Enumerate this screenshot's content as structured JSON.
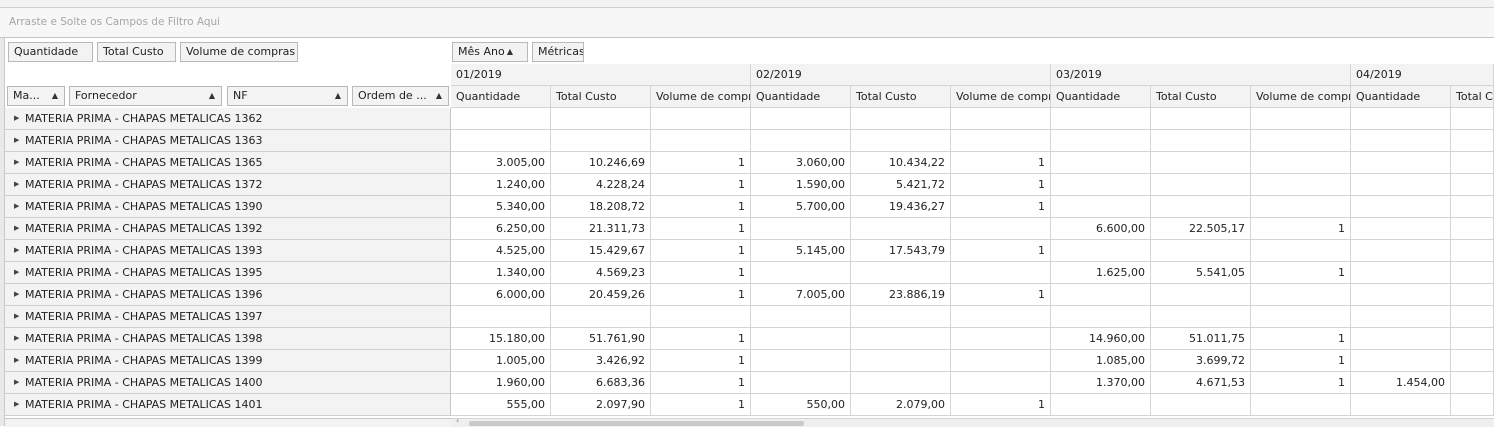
{
  "filter_area": {
    "placeholder": "Arraste e Solte os Campos de Filtro Aqui"
  },
  "data_fields": [
    {
      "label": "Quantidade"
    },
    {
      "label": "Total Custo"
    },
    {
      "label": "Volume de compras"
    }
  ],
  "column_fields": [
    {
      "label": "Mês Ano",
      "sort": "ascending"
    },
    {
      "label": "Métricas"
    }
  ],
  "row_fields": [
    {
      "label": "Ma...",
      "sort": "ascending"
    },
    {
      "label": "Fornecedor",
      "sort": "ascending"
    },
    {
      "label": "NF",
      "sort": "ascending"
    },
    {
      "label": "Ordem de ...",
      "sort": "ascending"
    }
  ],
  "periods": [
    "01/2019",
    "02/2019",
    "03/2019",
    "04/2019"
  ],
  "metrics": [
    "Quantidade",
    "Total Custo",
    "Volume de compras"
  ],
  "rows": [
    {
      "label": "MATERIA PRIMA - CHAPAS METALICAS 1362",
      "values": [
        "",
        "",
        "",
        "",
        "",
        "",
        "",
        "",
        "",
        "",
        ""
      ]
    },
    {
      "label": "MATERIA PRIMA - CHAPAS METALICAS 1363",
      "values": [
        "",
        "",
        "",
        "",
        "",
        "",
        "",
        "",
        "",
        "",
        ""
      ]
    },
    {
      "label": "MATERIA PRIMA - CHAPAS METALICAS 1365",
      "values": [
        "3.005,00",
        "10.246,69",
        "1",
        "3.060,00",
        "10.434,22",
        "1",
        "",
        "",
        "",
        "",
        ""
      ]
    },
    {
      "label": "MATERIA PRIMA - CHAPAS METALICAS 1372",
      "values": [
        "1.240,00",
        "4.228,24",
        "1",
        "1.590,00",
        "5.421,72",
        "1",
        "",
        "",
        "",
        "",
        ""
      ]
    },
    {
      "label": "MATERIA PRIMA - CHAPAS METALICAS 1390",
      "values": [
        "5.340,00",
        "18.208,72",
        "1",
        "5.700,00",
        "19.436,27",
        "1",
        "",
        "",
        "",
        "",
        ""
      ]
    },
    {
      "label": "MATERIA PRIMA - CHAPAS METALICAS 1392",
      "values": [
        "6.250,00",
        "21.311,73",
        "1",
        "",
        "",
        "",
        "6.600,00",
        "22.505,17",
        "1",
        "",
        ""
      ]
    },
    {
      "label": "MATERIA PRIMA - CHAPAS METALICAS 1393",
      "values": [
        "4.525,00",
        "15.429,67",
        "1",
        "5.145,00",
        "17.543,79",
        "1",
        "",
        "",
        "",
        "",
        ""
      ]
    },
    {
      "label": "MATERIA PRIMA - CHAPAS METALICAS 1395",
      "values": [
        "1.340,00",
        "4.569,23",
        "1",
        "",
        "",
        "",
        "1.625,00",
        "5.541,05",
        "1",
        "",
        ""
      ]
    },
    {
      "label": "MATERIA PRIMA - CHAPAS METALICAS 1396",
      "values": [
        "6.000,00",
        "20.459,26",
        "1",
        "7.005,00",
        "23.886,19",
        "1",
        "",
        "",
        "",
        "",
        ""
      ]
    },
    {
      "label": "MATERIA PRIMA - CHAPAS METALICAS 1397",
      "values": [
        "",
        "",
        "",
        "",
        "",
        "",
        "",
        "",
        "",
        "",
        ""
      ]
    },
    {
      "label": "MATERIA PRIMA - CHAPAS METALICAS 1398",
      "values": [
        "15.180,00",
        "51.761,90",
        "1",
        "",
        "",
        "",
        "14.960,00",
        "51.011,75",
        "1",
        "",
        ""
      ]
    },
    {
      "label": "MATERIA PRIMA - CHAPAS METALICAS 1399",
      "values": [
        "1.005,00",
        "3.426,92",
        "1",
        "",
        "",
        "",
        "1.085,00",
        "3.699,72",
        "1",
        "",
        ""
      ]
    },
    {
      "label": "MATERIA PRIMA - CHAPAS METALICAS 1400",
      "values": [
        "1.960,00",
        "6.683,36",
        "1",
        "",
        "",
        "",
        "1.370,00",
        "4.671,53",
        "1",
        "1.454,00",
        ""
      ]
    },
    {
      "label": "MATERIA PRIMA - CHAPAS METALICAS 1401",
      "values": [
        "555,00",
        "2.097,90",
        "1",
        "550,00",
        "2.079,00",
        "1",
        "",
        "",
        "",
        "",
        ""
      ]
    }
  ]
}
